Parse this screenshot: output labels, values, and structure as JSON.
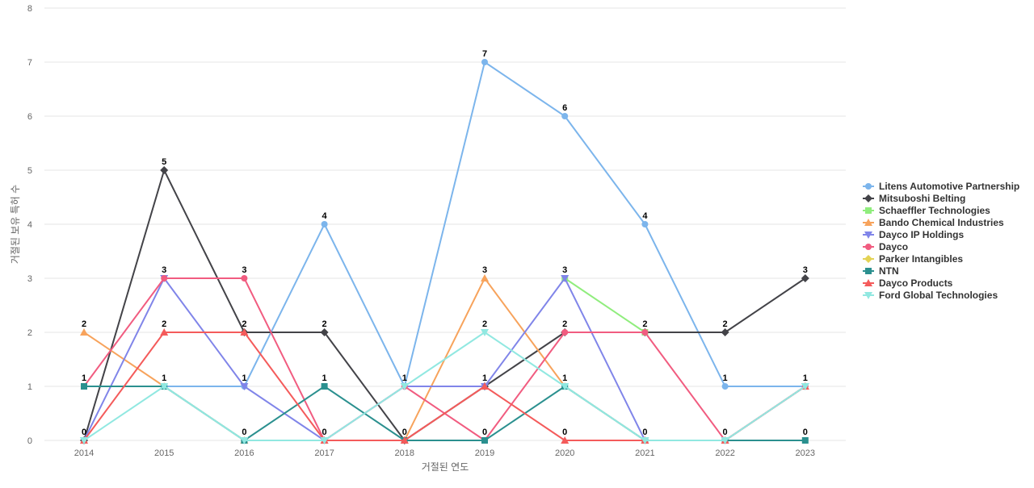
{
  "chart_data": {
    "type": "line",
    "title": "",
    "xlabel": "거절된 연도",
    "ylabel": "거절된 보유 특허 수",
    "categories": [
      "2014",
      "2015",
      "2016",
      "2017",
      "2018",
      "2019",
      "2020",
      "2021",
      "2022",
      "2023"
    ],
    "ylim": [
      0,
      8
    ],
    "yticks": [
      0,
      1,
      2,
      3,
      4,
      5,
      6,
      7,
      8
    ],
    "grid": true,
    "legend_position": "right",
    "series": [
      {
        "name": "Litens Automotive Partnership",
        "color": "#7cb5ec",
        "marker": "circle",
        "values": [
          null,
          1,
          1,
          4,
          1,
          7,
          6,
          4,
          1,
          1
        ]
      },
      {
        "name": "Mitsuboshi Belting",
        "color": "#434348",
        "marker": "diamond",
        "values": [
          0,
          5,
          2,
          2,
          0,
          1,
          2,
          2,
          2,
          3
        ]
      },
      {
        "name": "Schaeffler Technologies",
        "color": "#90ed7d",
        "marker": "square",
        "values": [
          null,
          null,
          null,
          null,
          null,
          null,
          3,
          2,
          null,
          null
        ]
      },
      {
        "name": "Bando Chemical Industries",
        "color": "#f7a35c",
        "marker": "triangle",
        "values": [
          2,
          1,
          0,
          0,
          0,
          3,
          1,
          0,
          0,
          1
        ]
      },
      {
        "name": "Dayco IP Holdings",
        "color": "#8085e9",
        "marker": "triangle-down",
        "values": [
          0,
          3,
          1,
          0,
          1,
          1,
          3,
          0,
          0,
          1
        ]
      },
      {
        "name": "Dayco",
        "color": "#f15c80",
        "marker": "circle",
        "values": [
          1,
          3,
          3,
          0,
          1,
          0,
          2,
          2,
          0,
          1
        ]
      },
      {
        "name": "Parker Intangibles",
        "color": "#e4d354",
        "marker": "diamond",
        "values": [
          null,
          null,
          null,
          null,
          null,
          null,
          null,
          null,
          null,
          null
        ]
      },
      {
        "name": "NTN",
        "color": "#2b908f",
        "marker": "square",
        "values": [
          1,
          1,
          0,
          1,
          0,
          0,
          1,
          0,
          0,
          0
        ]
      },
      {
        "name": "Dayco Products",
        "color": "#f45b5b",
        "marker": "triangle",
        "values": [
          0,
          2,
          2,
          0,
          0,
          1,
          0,
          0,
          0,
          1
        ]
      },
      {
        "name": "Ford Global Technologies",
        "color": "#91e8e1",
        "marker": "triangle-down",
        "values": [
          0,
          1,
          0,
          0,
          1,
          2,
          1,
          0,
          0,
          1
        ]
      }
    ],
    "data_labels": [
      {
        "x": "2014",
        "value": 2
      },
      {
        "x": "2014",
        "value": 1
      },
      {
        "x": "2014",
        "value": 0
      },
      {
        "x": "2015",
        "value": 5
      },
      {
        "x": "2015",
        "value": 3
      },
      {
        "x": "2015",
        "value": 2
      },
      {
        "x": "2015",
        "value": 1
      },
      {
        "x": "2016",
        "value": 3
      },
      {
        "x": "2016",
        "value": 2
      },
      {
        "x": "2016",
        "value": 1
      },
      {
        "x": "2016",
        "value": 0
      },
      {
        "x": "2017",
        "value": 4
      },
      {
        "x": "2017",
        "value": 2
      },
      {
        "x": "2017",
        "value": 1
      },
      {
        "x": "2017",
        "value": 0
      },
      {
        "x": "2018",
        "value": 1
      },
      {
        "x": "2018",
        "value": 0
      },
      {
        "x": "2019",
        "value": 7
      },
      {
        "x": "2019",
        "value": 3
      },
      {
        "x": "2019",
        "value": 2
      },
      {
        "x": "2019",
        "value": 1
      },
      {
        "x": "2019",
        "value": 0
      },
      {
        "x": "2020",
        "value": 6
      },
      {
        "x": "2020",
        "value": 3
      },
      {
        "x": "2020",
        "value": 2
      },
      {
        "x": "2020",
        "value": 1
      },
      {
        "x": "2020",
        "value": 0
      },
      {
        "x": "2021",
        "value": 4
      },
      {
        "x": "2021",
        "value": 2
      },
      {
        "x": "2021",
        "value": 0
      },
      {
        "x": "2022",
        "value": 2
      },
      {
        "x": "2022",
        "value": 1
      },
      {
        "x": "2022",
        "value": 0
      },
      {
        "x": "2023",
        "value": 3
      },
      {
        "x": "2023",
        "value": 1
      },
      {
        "x": "2023",
        "value": 0
      }
    ]
  }
}
